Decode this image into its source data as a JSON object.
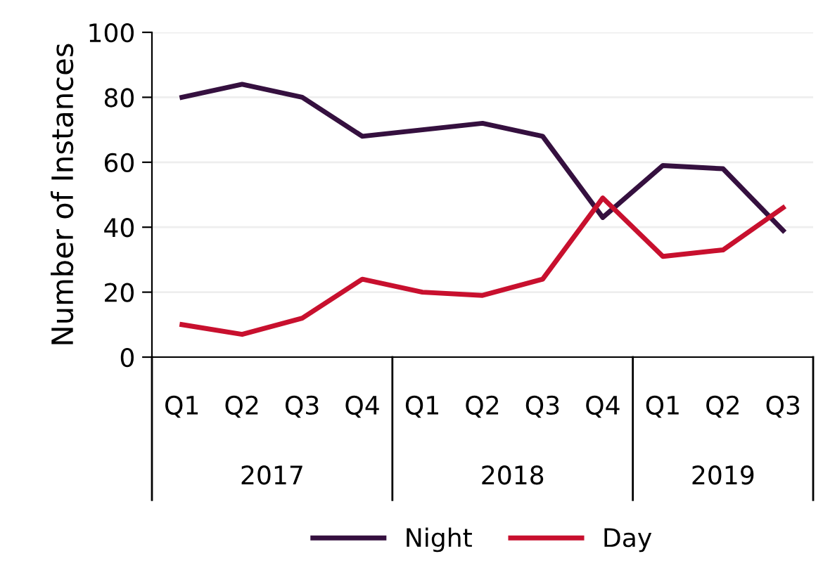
{
  "chart_data": {
    "type": "line",
    "ylabel": "Number of Instances",
    "categories": [
      "Q1",
      "Q2",
      "Q3",
      "Q4",
      "Q1",
      "Q2",
      "Q3",
      "Q4",
      "Q1",
      "Q2",
      "Q3"
    ],
    "annotations": [
      "2017",
      "2018",
      "2019"
    ],
    "series": [
      {
        "name": "Night",
        "color": "#35103f",
        "values": [
          80,
          84,
          80,
          68,
          70,
          72,
          68,
          43,
          59,
          58,
          39
        ]
      },
      {
        "name": "Day",
        "color": "#c8102e",
        "values": [
          10,
          7,
          12,
          24,
          20,
          19,
          24,
          49,
          31,
          33,
          46
        ]
      }
    ],
    "ylim": [
      0,
      100
    ],
    "yticks": [
      0,
      20,
      40,
      60,
      80,
      100
    ],
    "grid": "y",
    "legend": "bottom",
    "marker": "none",
    "line_style": "solid"
  }
}
